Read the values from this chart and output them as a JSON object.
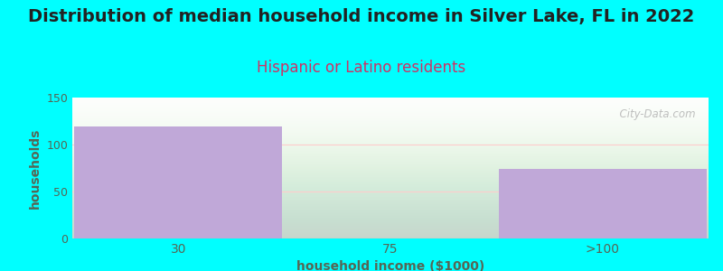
{
  "title": "Distribution of median household income in Silver Lake, FL in 2022",
  "subtitle": "Hispanic or Latino residents",
  "categories": [
    "30",
    "75",
    ">100"
  ],
  "values": [
    119,
    0,
    74
  ],
  "bar_color": "#c0a8d8",
  "background_color": "#00ffff",
  "plot_bg_color": "#ffffff",
  "xlabel": "household income ($1000)",
  "ylabel": "households",
  "ylim": [
    0,
    150
  ],
  "yticks": [
    0,
    50,
    100,
    150
  ],
  "title_fontsize": 14,
  "subtitle_fontsize": 12,
  "subtitle_color": "#cc3366",
  "title_color": "#222222",
  "axis_label_color": "#556655",
  "tick_color": "#556655",
  "watermark": "  City-Data.com",
  "grid_color": "#ffcccc"
}
